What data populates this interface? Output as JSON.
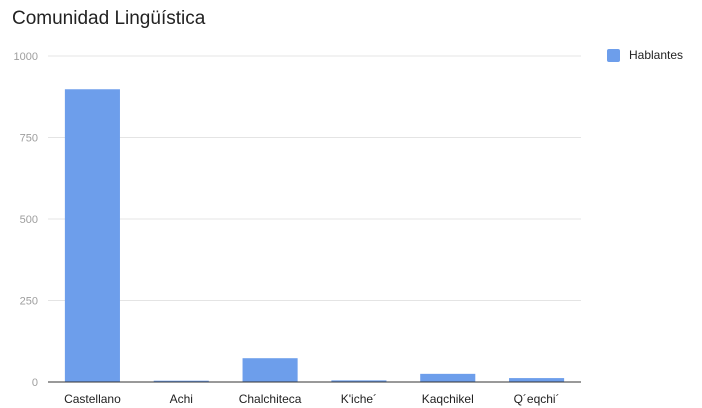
{
  "chart_data": {
    "type": "bar",
    "title": "Comunidad Lingüística",
    "categories": [
      "Castellano",
      "Achi",
      "Chalchiteca",
      "K'iche´",
      "Kaqchikel",
      "Q´eqchi´"
    ],
    "series": [
      {
        "name": "Hablantes",
        "values": [
          898,
          4,
          73,
          5,
          25,
          12
        ]
      }
    ],
    "ylim": [
      0,
      1000
    ],
    "yticks": [
      0,
      250,
      500,
      750,
      1000
    ],
    "xlabel": "",
    "ylabel": "",
    "grid": true,
    "legend_position": "top-right",
    "colors": {
      "bar": "#6d9eeb",
      "grid": "#e4e4e4",
      "axis": "#333333"
    }
  }
}
